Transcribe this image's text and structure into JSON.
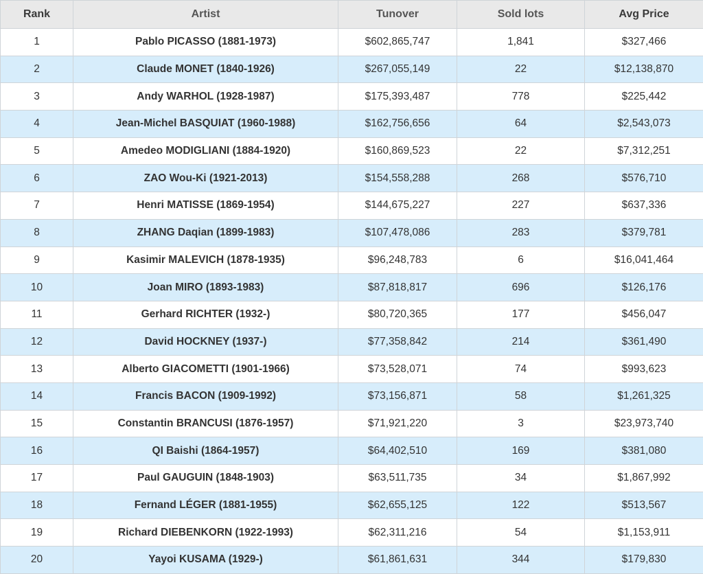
{
  "chart_data": {
    "type": "table",
    "columns": [
      "Rank",
      "Artist",
      "Tunover",
      "Sold lots",
      "Avg Price"
    ],
    "rows": [
      {
        "rank": "1",
        "artist": "Pablo PICASSO (1881-1973)",
        "turnover": "$602,865,747",
        "sold_lots": "1,841",
        "avg_price": "$327,466"
      },
      {
        "rank": "2",
        "artist": "Claude MONET (1840-1926)",
        "turnover": "$267,055,149",
        "sold_lots": "22",
        "avg_price": "$12,138,870"
      },
      {
        "rank": "3",
        "artist": "Andy WARHOL (1928-1987)",
        "turnover": "$175,393,487",
        "sold_lots": "778",
        "avg_price": "$225,442"
      },
      {
        "rank": "4",
        "artist": "Jean-Michel BASQUIAT (1960-1988)",
        "turnover": "$162,756,656",
        "sold_lots": "64",
        "avg_price": "$2,543,073"
      },
      {
        "rank": "5",
        "artist": "Amedeo MODIGLIANI (1884-1920)",
        "turnover": "$160,869,523",
        "sold_lots": "22",
        "avg_price": "$7,312,251"
      },
      {
        "rank": "6",
        "artist": "ZAO Wou-Ki (1921-2013)",
        "turnover": "$154,558,288",
        "sold_lots": "268",
        "avg_price": "$576,710"
      },
      {
        "rank": "7",
        "artist": "Henri MATISSE (1869-1954)",
        "turnover": "$144,675,227",
        "sold_lots": "227",
        "avg_price": "$637,336"
      },
      {
        "rank": "8",
        "artist": "ZHANG Daqian (1899-1983)",
        "turnover": "$107,478,086",
        "sold_lots": "283",
        "avg_price": "$379,781"
      },
      {
        "rank": "9",
        "artist": "Kasimir MALEVICH (1878-1935)",
        "turnover": "$96,248,783",
        "sold_lots": "6",
        "avg_price": "$16,041,464"
      },
      {
        "rank": "10",
        "artist": "Joan MIRO (1893-1983)",
        "turnover": "$87,818,817",
        "sold_lots": "696",
        "avg_price": "$126,176"
      },
      {
        "rank": "11",
        "artist": "Gerhard RICHTER (1932-)",
        "turnover": "$80,720,365",
        "sold_lots": "177",
        "avg_price": "$456,047"
      },
      {
        "rank": "12",
        "artist": "David HOCKNEY (1937-)",
        "turnover": "$77,358,842",
        "sold_lots": "214",
        "avg_price": "$361,490"
      },
      {
        "rank": "13",
        "artist": "Alberto GIACOMETTI (1901-1966)",
        "turnover": "$73,528,071",
        "sold_lots": "74",
        "avg_price": "$993,623"
      },
      {
        "rank": "14",
        "artist": "Francis BACON (1909-1992)",
        "turnover": "$73,156,871",
        "sold_lots": "58",
        "avg_price": "$1,261,325"
      },
      {
        "rank": "15",
        "artist": "Constantin BRANCUSI (1876-1957)",
        "turnover": "$71,921,220",
        "sold_lots": "3",
        "avg_price": "$23,973,740"
      },
      {
        "rank": "16",
        "artist": "QI Baishi (1864-1957)",
        "turnover": "$64,402,510",
        "sold_lots": "169",
        "avg_price": "$381,080"
      },
      {
        "rank": "17",
        "artist": "Paul GAUGUIN (1848-1903)",
        "turnover": "$63,511,735",
        "sold_lots": "34",
        "avg_price": "$1,867,992"
      },
      {
        "rank": "18",
        "artist": "Fernand LÉGER (1881-1955)",
        "turnover": "$62,655,125",
        "sold_lots": "122",
        "avg_price": "$513,567"
      },
      {
        "rank": "19",
        "artist": "Richard DIEBENKORN (1922-1993)",
        "turnover": "$62,311,216",
        "sold_lots": "54",
        "avg_price": "$1,153,911"
      },
      {
        "rank": "20",
        "artist": "Yayoi KUSAMA (1929-)",
        "turnover": "$61,861,631",
        "sold_lots": "344",
        "avg_price": "$179,830"
      }
    ]
  },
  "colors": {
    "header_background": "#e9e9e9",
    "row_odd": "#ffffff",
    "row_even": "#d7edfb",
    "border": "#cfd4d8"
  }
}
